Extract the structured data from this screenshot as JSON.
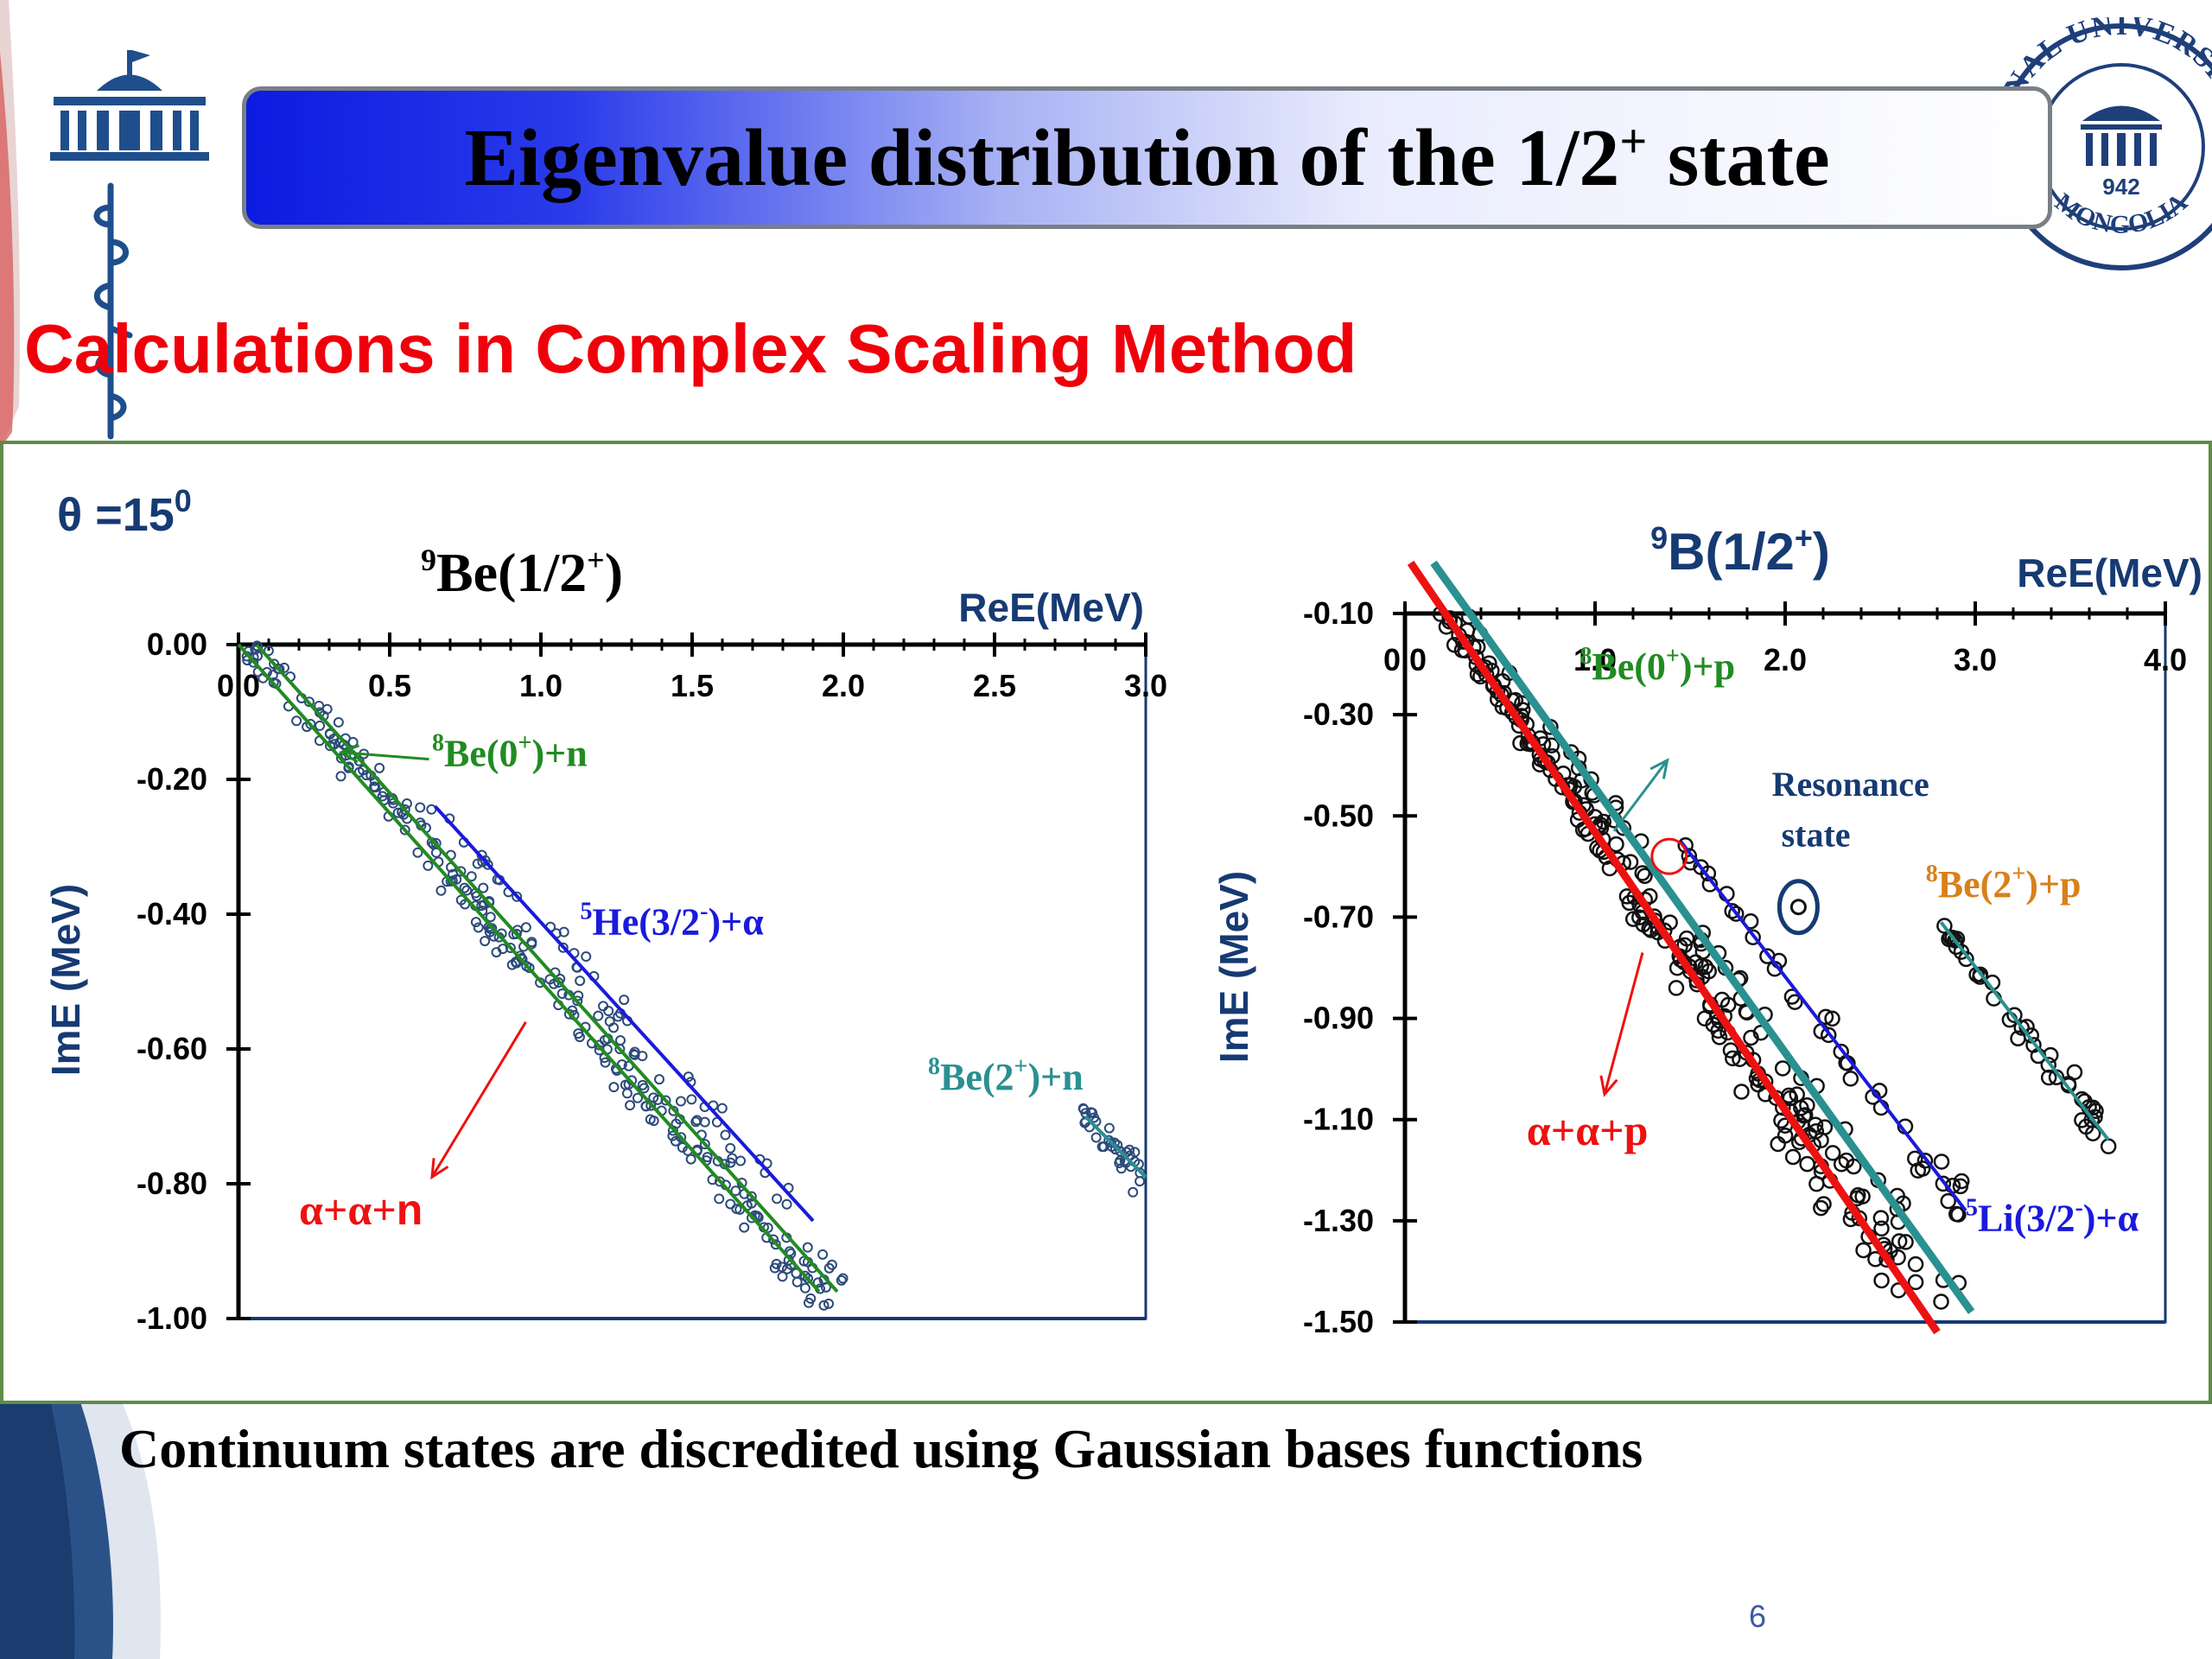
{
  "slide": {
    "title_main": "Eigenvalue distribution of the 1/2",
    "title_sup": "+",
    "title_tail": " state",
    "subtitle": "Calculations in Complex Scaling Method",
    "caption": "Continuum states are discredited using Gaussian bases functions",
    "page_number": "6",
    "seal_top_text": "ONAL UNIVERSITY",
    "seal_bottom_text": "MONGOLIA",
    "seal_year": "942",
    "theta_label": "θ =15",
    "theta_sup": "0"
  },
  "colors": {
    "title_gradient_start": "#0c1be0",
    "subtitle_red": "#f0000a",
    "frame_green": "#5f8a47",
    "axis_label_navy": "#163a72",
    "green_line": "#228b22",
    "blue_line": "#1a1adc",
    "red_line": "#ee1111",
    "teal_line": "#2a9090",
    "orange_label": "#d9801a",
    "marker_left": "#2c4a7a",
    "marker_right": "#111111"
  },
  "chart_data": [
    {
      "type": "scatter",
      "title_base": "Be(1/2",
      "title_presup": "9",
      "title_sup": "+",
      "title_close": ")",
      "xlabel": "ReE(MeV)",
      "ylabel": "ImE (MeV)",
      "xlim": [
        0,
        3.0
      ],
      "ylim": [
        -1.0,
        0
      ],
      "x_ticks": [
        "0.0",
        "0.5",
        "1.0",
        "1.5",
        "2.0",
        "2.5",
        "3.0"
      ],
      "y_ticks": [
        "0.00",
        "-0.20",
        "-0.40",
        "-0.60",
        "-0.80",
        "-1.00"
      ],
      "threshold_lines": [
        {
          "name": "8Be(0+)+n",
          "color": "green",
          "points": [
            [
              0.0,
              0.0
            ],
            [
              1.92,
              -0.96
            ]
          ]
        },
        {
          "name": "8Be(0+)+n",
          "color": "green",
          "points": [
            [
              0.06,
              0.0
            ],
            [
              1.98,
              -0.96
            ]
          ]
        },
        {
          "name": "5He(3/2-)+α",
          "color": "blue",
          "points": [
            [
              0.65,
              -0.24
            ],
            [
              1.9,
              -0.855
            ]
          ]
        },
        {
          "name": "8Be(2+)+n",
          "color": "teal",
          "points": [
            [
              2.8,
              -0.7
            ],
            [
              3.0,
              -0.79
            ]
          ]
        }
      ],
      "labels": [
        {
          "pre": "8",
          "base": "Be(0",
          "sup": "+",
          "tail": ")+n",
          "color": "green",
          "x": 0.64,
          "y": -0.18
        },
        {
          "pre": "5",
          "base": "He(3/2",
          "sup": "-",
          "tail": ")+α",
          "color": "blue",
          "x": 1.13,
          "y": -0.43
        },
        {
          "pre": "8",
          "base": "Be(2",
          "sup": "+",
          "tail": ")+n",
          "color": "teal",
          "x": 2.28,
          "y": -0.66
        },
        {
          "pre": "",
          "base": "α+α+",
          "sup": "",
          "tail": "n",
          "color": "red",
          "x": 0.2,
          "y": -0.86
        }
      ],
      "arrows": [
        {
          "color": "green",
          "from": [
            0.63,
            -0.17
          ],
          "to": [
            0.34,
            -0.16
          ]
        },
        {
          "color": "red",
          "from": [
            0.95,
            -0.56
          ],
          "to": [
            0.64,
            -0.79
          ]
        }
      ]
    },
    {
      "type": "scatter",
      "title_presup": "9",
      "title_base": "B(1/2",
      "title_sup": "+",
      "title_close": ")",
      "xlabel": "ReE(MeV)",
      "ylabel": "ImE (MeV)",
      "xlim": [
        0,
        4.0
      ],
      "ylim": [
        -1.5,
        -0.1
      ],
      "x_ticks": [
        "0.0",
        "1.0",
        "2.0",
        "3.0",
        "4.0"
      ],
      "y_ticks": [
        "-0.10",
        "-0.30",
        "-0.50",
        "-0.70",
        "-0.90",
        "-1.10",
        "-1.30",
        "-1.50"
      ],
      "threshold_lines": [
        {
          "name": "α+α+p",
          "color": "red",
          "points": [
            [
              0.03,
              0.0
            ],
            [
              2.8,
              -1.52
            ]
          ]
        },
        {
          "name": "8Be(0+)+p",
          "color": "teal",
          "points": [
            [
              0.15,
              0.0
            ],
            [
              2.98,
              -1.48
            ]
          ]
        },
        {
          "name": "5Li(3/2-)+α",
          "color": "blue",
          "points": [
            [
              1.45,
              -0.55
            ],
            [
              2.95,
              -1.28
            ]
          ]
        },
        {
          "name": "8Be(2+)+p",
          "color": "teal",
          "points": [
            [
              2.82,
              -0.71
            ],
            [
              3.7,
              -1.14
            ]
          ]
        }
      ],
      "resonance": {
        "x": 2.07,
        "y": -0.68
      },
      "labels": [
        {
          "pre": "8",
          "base": "Be(0",
          "sup": "+",
          "tail": ")+p",
          "color": "green",
          "x": 0.92,
          "y": -0.23
        },
        {
          "pre": "",
          "base": "Resonance",
          "sup": "",
          "tail": "",
          "color": "navy",
          "x": 1.93,
          "y": -0.46
        },
        {
          "pre": "",
          "base": "state",
          "sup": "",
          "tail": "",
          "color": "navy",
          "x": 1.98,
          "y": -0.56
        },
        {
          "pre": "8",
          "base": "Be(2",
          "sup": "+",
          "tail": ")+p",
          "color": "orange",
          "x": 2.74,
          "y": -0.66
        },
        {
          "pre": "",
          "base": "α+α+p",
          "sup": "",
          "tail": "",
          "color": "red",
          "x": 0.64,
          "y": -1.15
        },
        {
          "pre": "5",
          "base": "Li(3/2",
          "sup": "-",
          "tail": ")+α",
          "color": "blue",
          "x": 2.95,
          "y": -1.32
        }
      ],
      "arrows": [
        {
          "color": "teal",
          "from": [
            1.1,
            -0.53
          ],
          "to": [
            1.38,
            -0.39
          ]
        },
        {
          "color": "red",
          "from": [
            1.25,
            -0.77
          ],
          "to": [
            1.05,
            -1.05
          ]
        }
      ]
    }
  ]
}
